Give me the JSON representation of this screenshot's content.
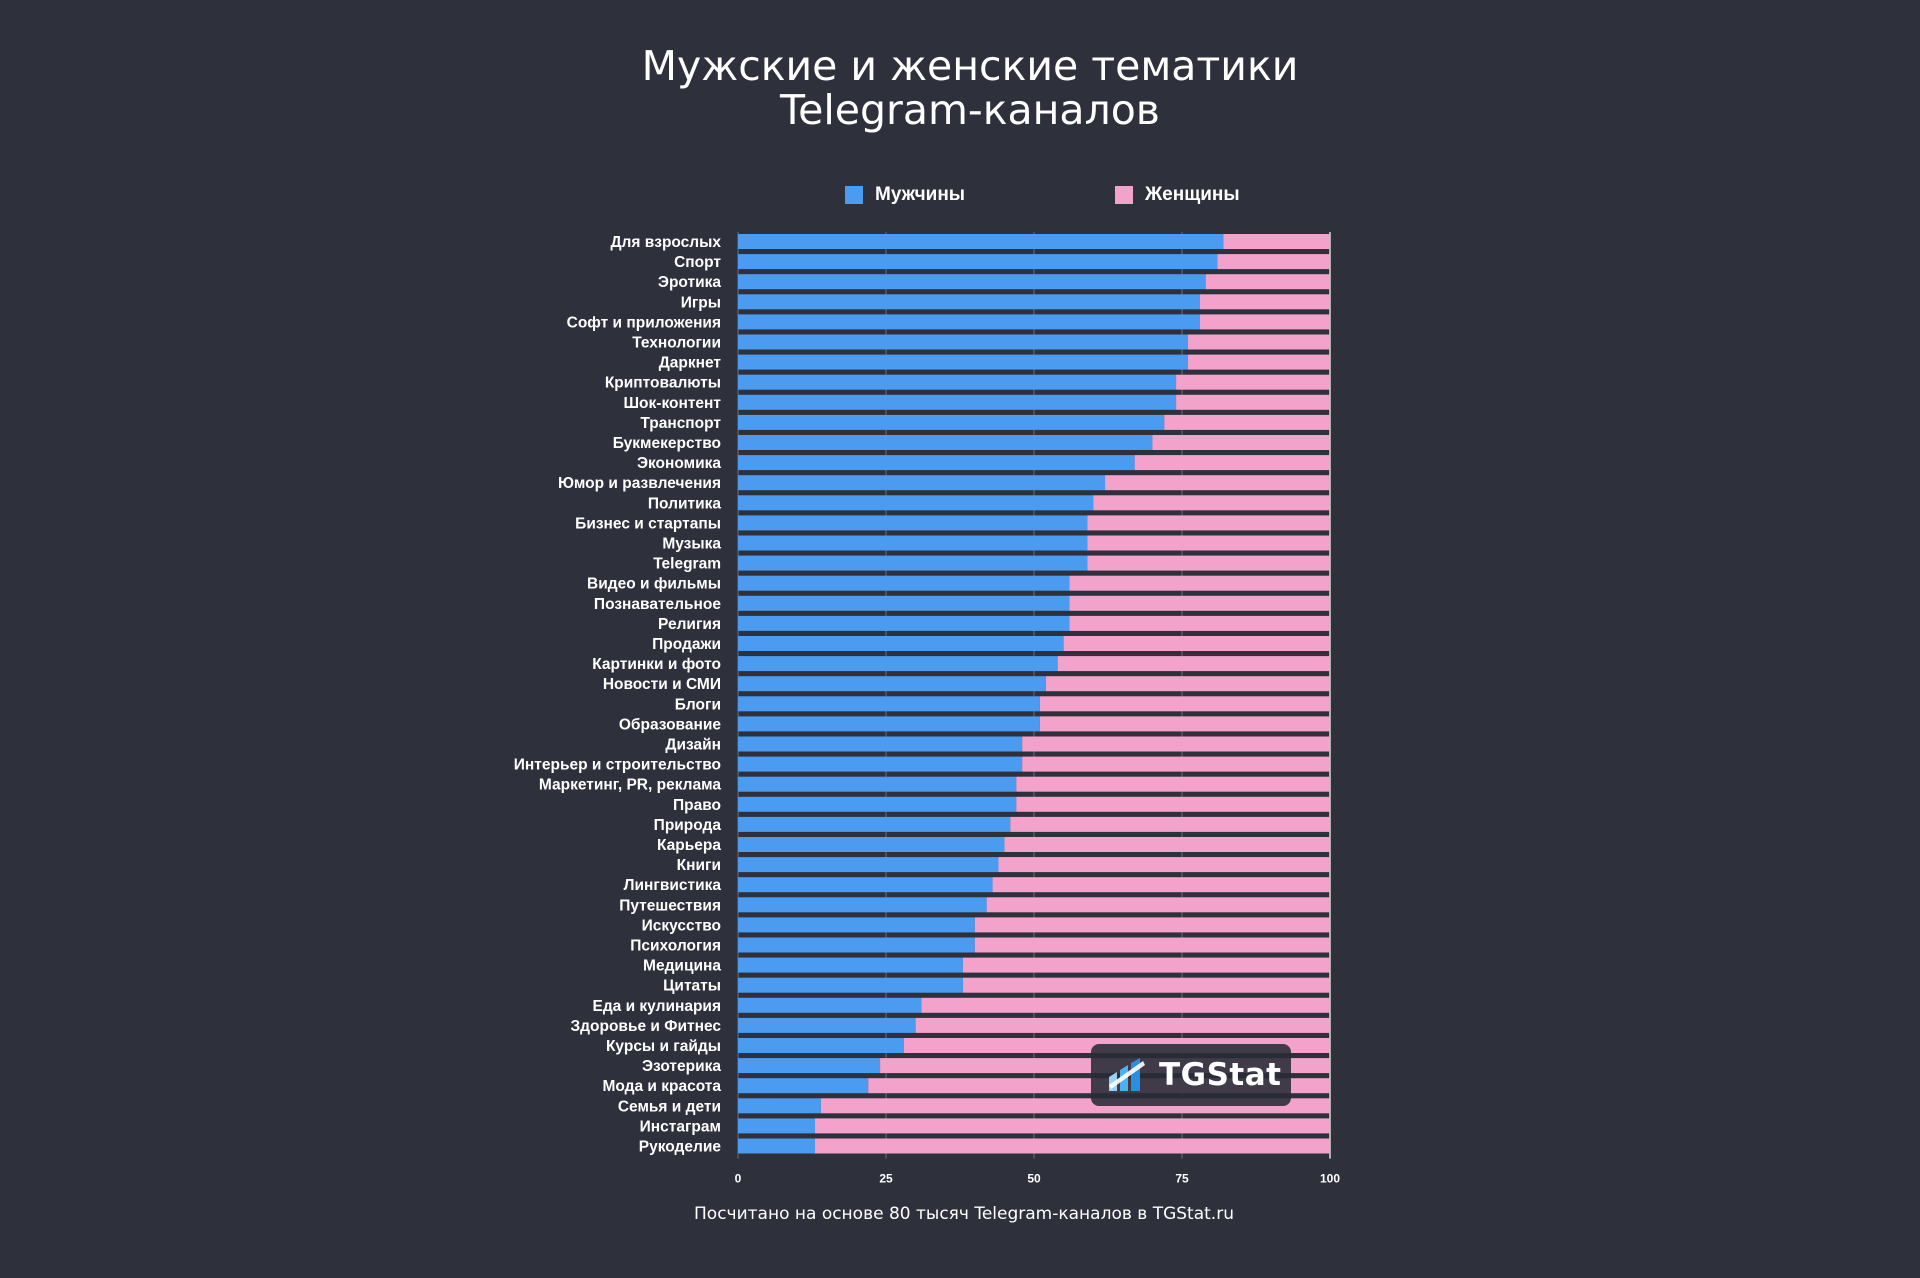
{
  "title_lines": [
    "Мужские и женские тематики",
    "Telegram-каналов"
  ],
  "legend": [
    {
      "label": "Мужчины",
      "color": "#4b9cf0"
    },
    {
      "label": "Женщины",
      "color": "#f3a3cb"
    }
  ],
  "footer": "Посчитано на основе 80 тысяч Telegram-каналов в TGStat.ru",
  "watermark": {
    "text": "TGStat",
    "icon": "tgstat-logo-icon"
  },
  "colors": {
    "background": "#2e313b",
    "men": "#4b9cf0",
    "women": "#f3a3cb"
  },
  "chart_data": {
    "type": "bar",
    "orientation": "horizontal",
    "stacked": true,
    "title": "Мужские и женские тематики Telegram-каналов",
    "xlim": [
      0,
      100
    ],
    "xticks": [
      0,
      25,
      50,
      75,
      100
    ],
    "grid": true,
    "legend_position": "top",
    "categories": [
      "Для взрослых",
      "Спорт",
      "Эротика",
      "Игры",
      "Софт и приложения",
      "Технологии",
      "Даркнет",
      "Криптовалюты",
      "Шок-контент",
      "Транспорт",
      "Букмекерство",
      "Экономика",
      "Юмор и развлечения",
      "Политика",
      "Бизнес и стартапы",
      "Музыка",
      "Telegram",
      "Видео и фильмы",
      "Познавательное",
      "Религия",
      "Продажи",
      "Картинки и фото",
      "Новости и СМИ",
      "Блоги",
      "Образование",
      "Дизайн",
      "Интерьер и строительство",
      "Маркетинг, PR, реклама",
      "Право",
      "Природа",
      "Карьера",
      "Книги",
      "Лингвистика",
      "Путешествия",
      "Искусство",
      "Психология",
      "Медицина",
      "Цитаты",
      "Еда и кулинария",
      "Здоровье и Фитнес",
      "Курсы и гайды",
      "Эзотерика",
      "Мода и красота",
      "Семья и дети",
      "Инстаграм",
      "Рукоделие"
    ],
    "series": [
      {
        "name": "Мужчины",
        "values": [
          82,
          81,
          79,
          78,
          78,
          76,
          76,
          74,
          74,
          72,
          70,
          67,
          62,
          60,
          59,
          59,
          59,
          56,
          56,
          56,
          55,
          54,
          52,
          51,
          51,
          48,
          48,
          47,
          47,
          46,
          45,
          44,
          43,
          42,
          40,
          40,
          38,
          38,
          31,
          30,
          28,
          24,
          22,
          14,
          13,
          13
        ]
      },
      {
        "name": "Женщины",
        "values": [
          18,
          19,
          21,
          22,
          22,
          24,
          24,
          26,
          26,
          28,
          30,
          33,
          38,
          40,
          41,
          41,
          41,
          44,
          44,
          44,
          45,
          46,
          48,
          49,
          49,
          52,
          52,
          53,
          53,
          54,
          55,
          56,
          57,
          58,
          60,
          60,
          62,
          62,
          69,
          70,
          72,
          76,
          78,
          86,
          87,
          87
        ]
      }
    ]
  }
}
